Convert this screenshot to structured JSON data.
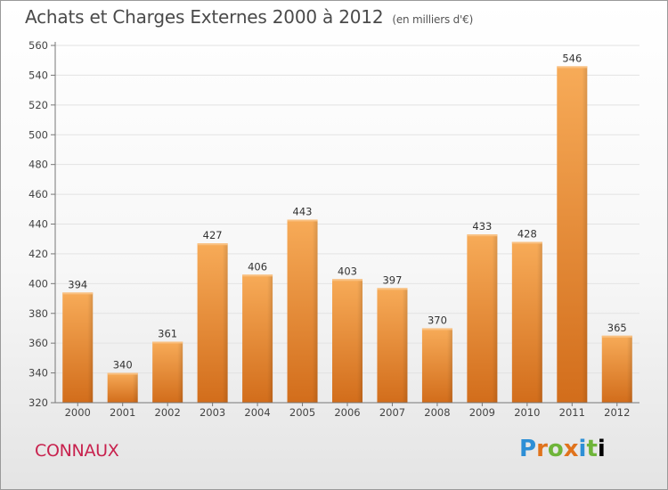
{
  "header": {
    "title": "Achats et Charges Externes 2000 à 2012",
    "unit": "(en milliers d'€)"
  },
  "commune": "CONNAUX",
  "logo": {
    "letters": [
      "P",
      "r",
      "o",
      "x",
      "i",
      "t",
      "i"
    ]
  },
  "colors": {
    "bar_light": "#f6a855",
    "bar_dark": "#d5701e",
    "grid": "#e3e3e3",
    "commune": "#c8224e"
  },
  "chart_data": {
    "type": "bar",
    "categories": [
      "2000",
      "2001",
      "2002",
      "2003",
      "2004",
      "2005",
      "2006",
      "2007",
      "2008",
      "2009",
      "2010",
      "2011",
      "2012"
    ],
    "values": [
      394,
      340,
      361,
      427,
      406,
      443,
      403,
      397,
      370,
      433,
      428,
      546,
      365
    ],
    "title": "Achats et Charges Externes 2000 à 2012",
    "ylim": [
      320,
      560
    ],
    "yticks": [
      320,
      340,
      360,
      380,
      400,
      420,
      440,
      460,
      480,
      500,
      520,
      540,
      560
    ],
    "grid": true,
    "data_labels": true
  }
}
